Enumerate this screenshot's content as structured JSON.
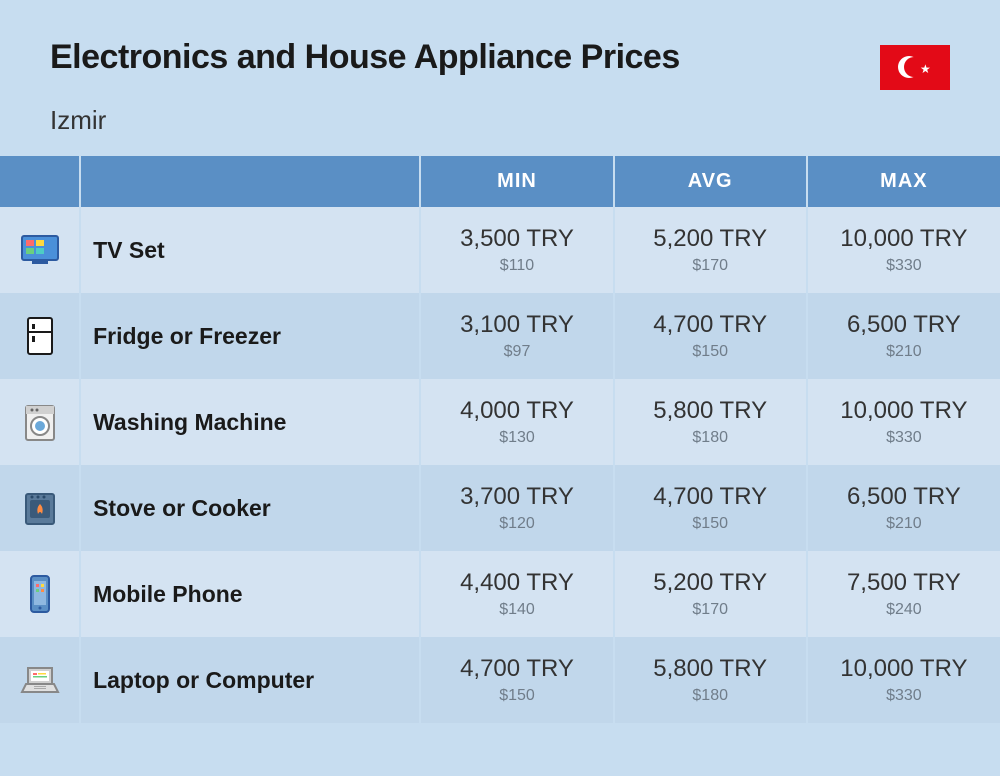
{
  "header": {
    "title": "Electronics and House Appliance Prices",
    "subtitle": "Izmir"
  },
  "columns": {
    "min": "MIN",
    "avg": "AVG",
    "max": "MAX"
  },
  "rows": [
    {
      "icon": "tv-icon",
      "label": "TV Set",
      "min_try": "3,500 TRY",
      "min_usd": "$110",
      "avg_try": "5,200 TRY",
      "avg_usd": "$170",
      "max_try": "10,000 TRY",
      "max_usd": "$330"
    },
    {
      "icon": "fridge-icon",
      "label": "Fridge or Freezer",
      "min_try": "3,100 TRY",
      "min_usd": "$97",
      "avg_try": "4,700 TRY",
      "avg_usd": "$150",
      "max_try": "6,500 TRY",
      "max_usd": "$210"
    },
    {
      "icon": "washing-machine-icon",
      "label": "Washing Machine",
      "min_try": "4,000 TRY",
      "min_usd": "$130",
      "avg_try": "5,800 TRY",
      "avg_usd": "$180",
      "max_try": "10,000 TRY",
      "max_usd": "$330"
    },
    {
      "icon": "stove-icon",
      "label": "Stove or Cooker",
      "min_try": "3,700 TRY",
      "min_usd": "$120",
      "avg_try": "4,700 TRY",
      "avg_usd": "$150",
      "max_try": "6,500 TRY",
      "max_usd": "$210"
    },
    {
      "icon": "mobile-phone-icon",
      "label": "Mobile Phone",
      "min_try": "4,400 TRY",
      "min_usd": "$140",
      "avg_try": "5,200 TRY",
      "avg_usd": "$170",
      "max_try": "7,500 TRY",
      "max_usd": "$240"
    },
    {
      "icon": "laptop-icon",
      "label": "Laptop or Computer",
      "min_try": "4,700 TRY",
      "min_usd": "$150",
      "avg_try": "5,800 TRY",
      "avg_usd": "$180",
      "max_try": "10,000 TRY",
      "max_usd": "$330"
    }
  ],
  "colors": {
    "page_bg": "#c7ddf0",
    "header_bg": "#5a8fc5",
    "row_odd": "#d4e3f2",
    "row_even": "#c1d7eb",
    "flag_bg": "#e30a17",
    "text_main": "#1a1a1a",
    "text_sub": "#707d8a"
  }
}
